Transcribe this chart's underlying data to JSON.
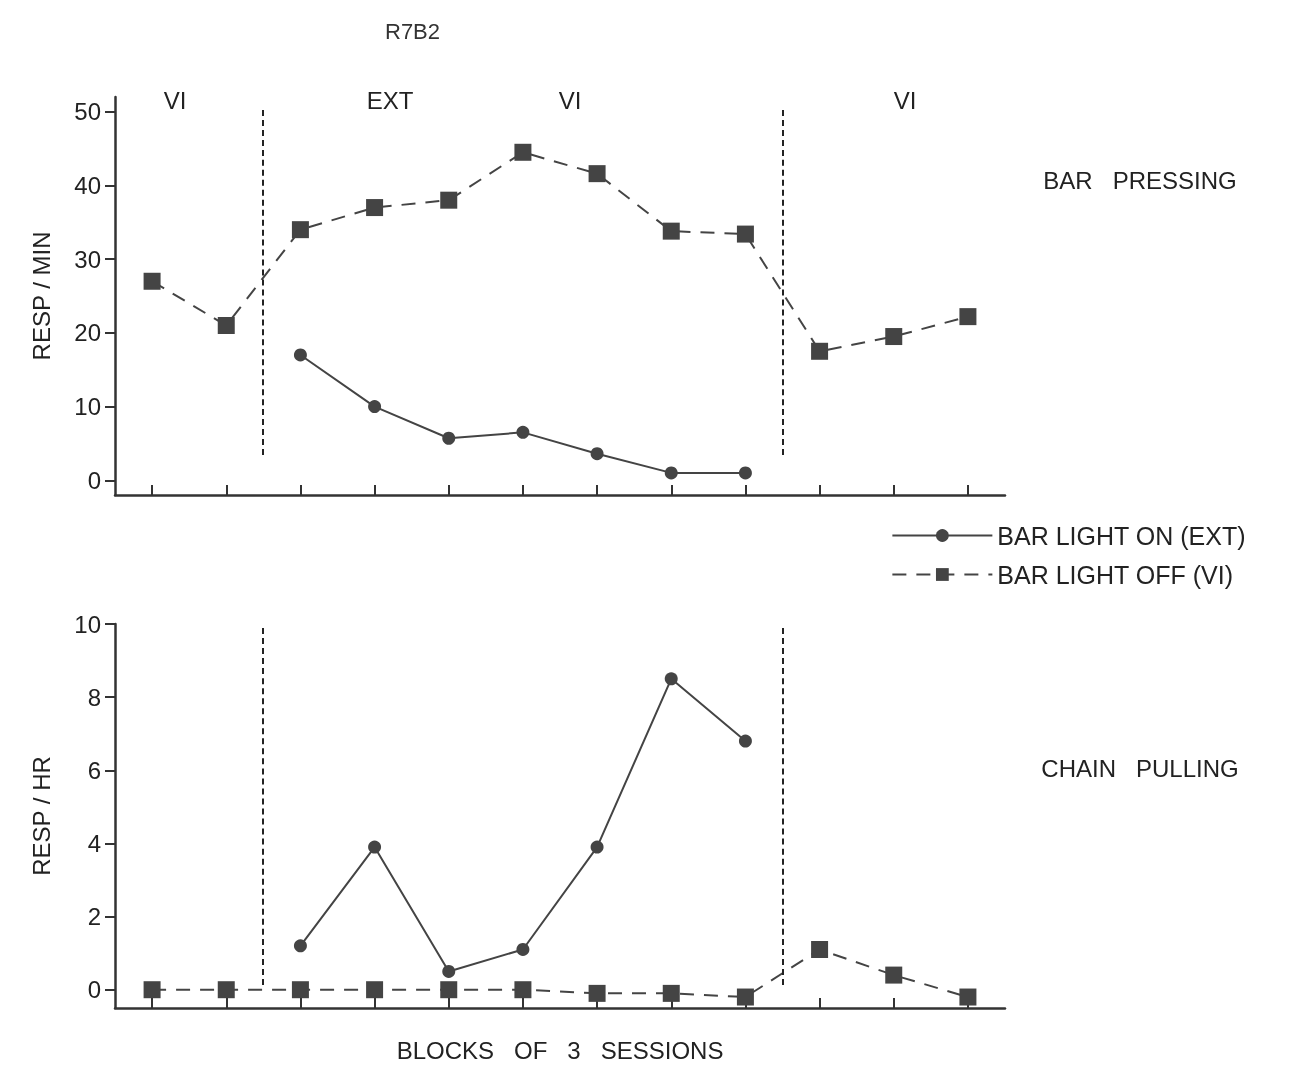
{
  "chart_data": [
    {
      "type": "line",
      "title": "R7B2",
      "ylabel": "RESP / MIN",
      "categories": [
        null,
        null,
        null,
        null,
        null,
        null,
        null,
        null,
        null,
        null,
        null,
        null
      ],
      "ylim": [
        -2,
        52
      ],
      "yticks": [
        0,
        10,
        20,
        30,
        40,
        50
      ],
      "grid": false,
      "series": [
        {
          "name": "BAR LIGHT ON (EXT)",
          "color": "#444444",
          "marker": "circle",
          "line_style": "solid",
          "values": [
            null,
            null,
            17,
            10,
            5.7,
            6.5,
            3.6,
            1,
            1,
            null,
            null,
            null
          ]
        },
        {
          "name": "BAR LIGHT OFF (VI)",
          "color": "#444444",
          "marker": "square",
          "line_style": "dashed",
          "values": [
            27,
            21,
            34,
            37,
            38,
            44.5,
            41.6,
            33.8,
            33.4,
            17.5,
            19.5,
            22.2
          ]
        }
      ],
      "annotations": [
        "VI",
        "EXT",
        "VI",
        "VI",
        "BAR   PRESSING"
      ],
      "legend": "bottom right"
    },
    {
      "type": "line",
      "ylabel": "RESP / HR",
      "xlabel": "BLOCKS   OF   3   SESSIONS",
      "categories": [
        null,
        null,
        null,
        null,
        null,
        null,
        null,
        null,
        null,
        null,
        null,
        null
      ],
      "ylim": [
        -0.5,
        10
      ],
      "yticks": [
        0,
        2,
        4,
        6,
        8,
        10
      ],
      "grid": false,
      "series": [
        {
          "color": "#444444",
          "marker": "circle",
          "line_style": "solid",
          "values": [
            null,
            null,
            1.2,
            3.9,
            0.5,
            1.1,
            3.9,
            8.5,
            6.8,
            null,
            null,
            null
          ]
        },
        {
          "color": "#444444",
          "marker": "square",
          "line_style": "dashed",
          "values": [
            0,
            0,
            0,
            0,
            0,
            0,
            -0.1,
            -0.1,
            -0.2,
            1.1,
            0.4,
            -0.2
          ]
        }
      ],
      "annotations": [
        "CHAIN   PULLING"
      ],
      "legend": false
    }
  ]
}
